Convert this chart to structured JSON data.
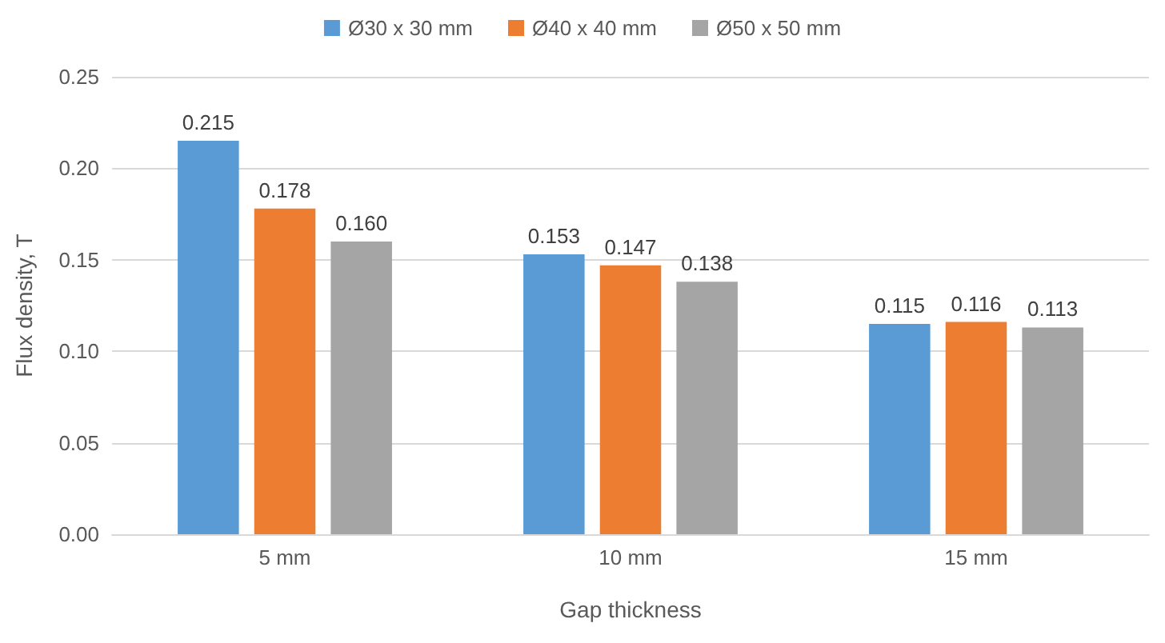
{
  "chart_data": {
    "type": "bar",
    "xlabel": "Gap thickness",
    "ylabel": "Flux density, T",
    "categories": [
      "5 mm",
      "10 mm",
      "15 mm"
    ],
    "series": [
      {
        "name": "Ø30 x 30 mm",
        "color": "#5b9bd5",
        "values": [
          0.215,
          0.153,
          0.115
        ],
        "value_labels": [
          "0.215",
          "0.153",
          "0.115"
        ]
      },
      {
        "name": "Ø40 x 40 mm",
        "color": "#ed7d31",
        "values": [
          0.178,
          0.147,
          0.116
        ],
        "value_labels": [
          "0.178",
          "0.147",
          "0.116"
        ]
      },
      {
        "name": "Ø50 x 50 mm",
        "color": "#a5a5a5",
        "values": [
          0.16,
          0.138,
          0.113
        ],
        "value_labels": [
          "0.160",
          "0.138",
          "0.113"
        ]
      }
    ],
    "ylim": [
      0,
      0.25
    ],
    "yticks": [
      {
        "value": 0,
        "label": "0.00"
      },
      0.05,
      {
        "value": 0.1,
        "label": "0.10"
      },
      0.15,
      {
        "value": 0.2,
        "label": "0.20"
      },
      0.25
    ],
    "grid": "y",
    "legend": "top"
  }
}
